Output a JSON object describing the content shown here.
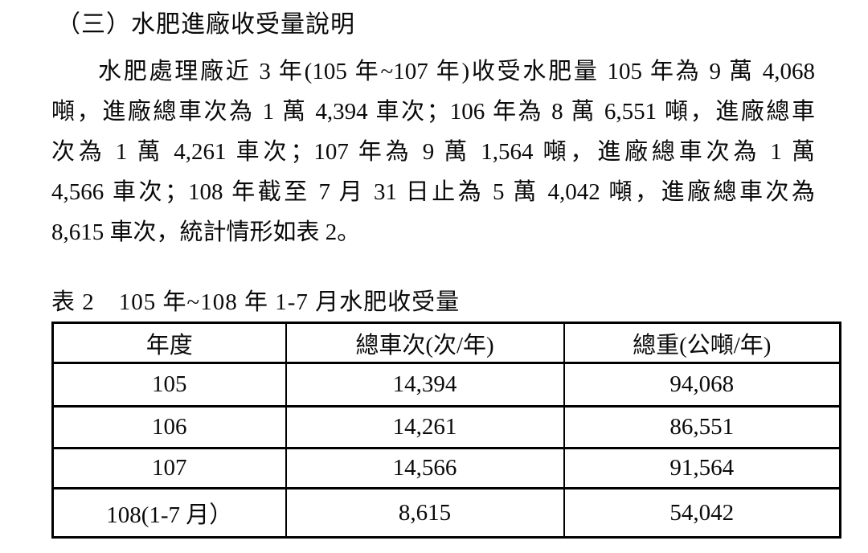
{
  "page": {
    "background_color": "#ffffff",
    "text_color": "#0a0a0a",
    "table_border_color": "#000000"
  },
  "section_title": "（三）水肥進廠收受量說明",
  "paragraph": {
    "lines": [
      "水肥處理廠近 3 年(105 年~107 年)收受水肥量 105 年為 9 萬 4,068",
      "噸，進廠總車次為 1 萬 4,394 車次；106 年為 8 萬 6,551 噸，進廠總車",
      "次為 1 萬 4,261 車次；107 年為 9 萬 1,564 噸，進廠總車次為 1 萬",
      "4,566 車次；108 年截至 7 月 31 日止為 5 萬 4,042 噸，進廠總車次為",
      "8,615 車次，統計情形如表 2。"
    ]
  },
  "table": {
    "caption": "表 2　105 年~108 年 1-7 月水肥收受量",
    "headers": [
      "年度",
      "總車次(次/年)",
      "總重(公噸/年)"
    ],
    "rows": [
      [
        "105",
        "14,394",
        "94,068"
      ],
      [
        "106",
        "14,261",
        "86,551"
      ],
      [
        "107",
        "14,566",
        "91,564"
      ],
      [
        "108(1-7 月）",
        "8,615",
        "54,042"
      ]
    ]
  }
}
